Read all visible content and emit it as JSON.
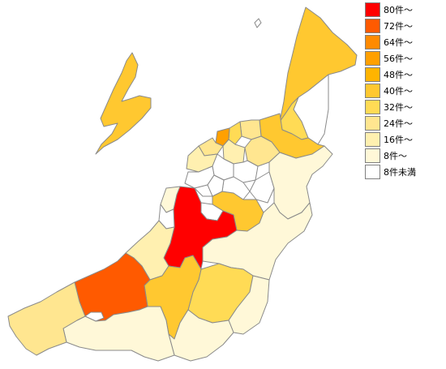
{
  "legend": [
    {
      "label": "80件～",
      "color": "#ff0000"
    },
    {
      "label": "72件～",
      "color": "#ff5a00"
    },
    {
      "label": "64件～",
      "color": "#ff8a00"
    },
    {
      "label": "56件～",
      "color": "#ffa000"
    },
    {
      "label": "48件～",
      "color": "#ffb400"
    },
    {
      "label": "40件～",
      "color": "#ffc830"
    },
    {
      "label": "32件～",
      "color": "#ffdb55"
    },
    {
      "label": "24件～",
      "color": "#ffe690"
    },
    {
      "label": "16件～",
      "color": "#fff0b0"
    },
    {
      "label": "8件～",
      "color": "#fff8d8"
    },
    {
      "label": "8件未満",
      "color": "#ffffff"
    }
  ],
  "regions": [
    {
      "id": "sado",
      "color": "#ffc830"
    },
    {
      "id": "awashima",
      "color": "#ffffff"
    },
    {
      "id": "murakami",
      "color": "#ffc830"
    },
    {
      "id": "sekikawa",
      "color": "#ffffff"
    },
    {
      "id": "tainai",
      "color": "#ffdb55"
    },
    {
      "id": "shibata",
      "color": "#ffc830"
    },
    {
      "id": "seiro",
      "color": "#ffe690"
    },
    {
      "id": "agano",
      "color": "#ffe690"
    },
    {
      "id": "niigata-kita",
      "color": "#ffdb55"
    },
    {
      "id": "niigata-higashi",
      "color": "#ffa000"
    },
    {
      "id": "niigata-chuo",
      "color": "#ffe690"
    },
    {
      "id": "niigata-nishi",
      "color": "#fff0b0"
    },
    {
      "id": "niigata-konan",
      "color": "#fff0b0"
    },
    {
      "id": "akiha",
      "color": "#ffffff"
    },
    {
      "id": "minami",
      "color": "#ffffff"
    },
    {
      "id": "nishikan",
      "color": "#ffffff"
    },
    {
      "id": "gosen",
      "color": "#ffffff"
    },
    {
      "id": "aga",
      "color": "#fff8d8"
    },
    {
      "id": "tsubame",
      "color": "#ffffff"
    },
    {
      "id": "sanjo",
      "color": "#ffc830"
    },
    {
      "id": "kamo",
      "color": "#ffffff"
    },
    {
      "id": "tagami",
      "color": "#ffffff"
    },
    {
      "id": "mitsuke",
      "color": "#ffffff"
    },
    {
      "id": "nagaoka",
      "color": "#ff0000"
    },
    {
      "id": "izumozaki",
      "color": "#fff8d8"
    },
    {
      "id": "kashiwazaki",
      "color": "#fff0b0"
    },
    {
      "id": "kariwa",
      "color": "#ffffff"
    },
    {
      "id": "ojiya",
      "color": "#ffffff"
    },
    {
      "id": "uonuma",
      "color": "#fff8d8"
    },
    {
      "id": "minamiuonuma",
      "color": "#ffdb55"
    },
    {
      "id": "yuzawa",
      "color": "#fff8d8"
    },
    {
      "id": "tokamachi",
      "color": "#ffc830"
    },
    {
      "id": "tsunan",
      "color": "#fff8d8"
    },
    {
      "id": "joetsu",
      "color": "#ff5a00"
    },
    {
      "id": "myoko",
      "color": "#fff8d8"
    },
    {
      "id": "itoigawa",
      "color": "#ffe690"
    },
    {
      "id": "joetsu-enclave",
      "color": "#ffffff"
    }
  ]
}
